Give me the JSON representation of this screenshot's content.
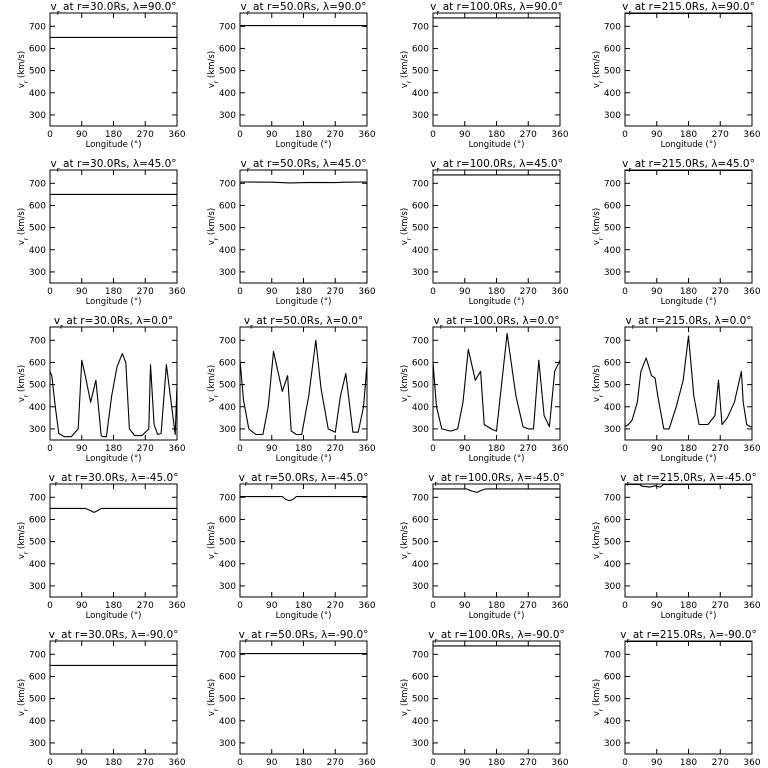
{
  "chart_data": {
    "type": "line",
    "layout": {
      "rows": 5,
      "cols": 4
    },
    "xlabel": "Longitude (°)",
    "ylabel": "v_r (km/s)",
    "xlim": [
      0,
      360
    ],
    "ylim": [
      250,
      760
    ],
    "xticks": [
      0,
      90,
      180,
      270,
      360
    ],
    "yticks": [
      300,
      400,
      500,
      600,
      700
    ],
    "grid": false,
    "line_color": "#000000",
    "panels": [
      {
        "title": "v_r at r=30.0Rs, λ=90.0°",
        "x": [
          0,
          360
        ],
        "y": [
          650,
          650
        ]
      },
      {
        "title": "v_r at r=50.0Rs, λ=90.0°",
        "x": [
          0,
          360
        ],
        "y": [
          703,
          703
        ]
      },
      {
        "title": "v_r at r=100.0Rs, λ=90.0°",
        "x": [
          0,
          360
        ],
        "y": [
          738,
          738
        ]
      },
      {
        "title": "v_r at r=215.0Rs, λ=90.0°",
        "x": [
          0,
          360
        ],
        "y": [
          758,
          758
        ]
      },
      {
        "title": "v_r at r=30.0Rs, λ=45.0°",
        "x": [
          0,
          360
        ],
        "y": [
          650,
          650
        ]
      },
      {
        "title": "v_r at r=50.0Rs, λ=45.0°",
        "x": [
          0,
          90,
          140,
          200,
          270,
          300,
          360
        ],
        "y": [
          706,
          705,
          702,
          704,
          703,
          705,
          706
        ]
      },
      {
        "title": "v_r at r=100.0Rs, λ=45.0°",
        "x": [
          0,
          360
        ],
        "y": [
          738,
          738
        ]
      },
      {
        "title": "v_r at r=215.0Rs, λ=45.0°",
        "x": [
          0,
          360
        ],
        "y": [
          758,
          758
        ]
      },
      {
        "title": "v_r at r=30.0Rs, λ=0.0°",
        "x": [
          0,
          5,
          15,
          25,
          40,
          60,
          80,
          90,
          100,
          115,
          130,
          145,
          150,
          160,
          175,
          190,
          205,
          215,
          225,
          240,
          260,
          280,
          285,
          295,
          305,
          315,
          330,
          345,
          355,
          360
        ],
        "y": [
          560,
          540,
          400,
          280,
          265,
          265,
          300,
          610,
          540,
          420,
          520,
          270,
          265,
          265,
          450,
          580,
          640,
          600,
          300,
          270,
          270,
          300,
          590,
          320,
          275,
          280,
          590,
          400,
          275,
          500
        ]
      },
      {
        "title": "v_r at r=50.0Rs, λ=0.0°",
        "x": [
          0,
          10,
          25,
          45,
          65,
          80,
          95,
          120,
          135,
          145,
          160,
          175,
          195,
          215,
          230,
          250,
          270,
          285,
          300,
          320,
          335,
          350,
          360
        ],
        "y": [
          610,
          430,
          300,
          275,
          275,
          400,
          650,
          470,
          540,
          290,
          275,
          275,
          450,
          700,
          480,
          300,
          285,
          450,
          550,
          285,
          285,
          400,
          590
        ]
      },
      {
        "title": "v_r at r=100.0Rs, λ=0.0°",
        "x": [
          0,
          10,
          25,
          50,
          70,
          85,
          100,
          120,
          135,
          145,
          165,
          180,
          210,
          235,
          255,
          270,
          285,
          300,
          315,
          330,
          345,
          360
        ],
        "y": [
          600,
          400,
          300,
          290,
          300,
          420,
          660,
          520,
          560,
          320,
          300,
          290,
          730,
          450,
          310,
          300,
          300,
          610,
          360,
          310,
          560,
          610
        ]
      },
      {
        "title": "v_r at r=215.0Rs, λ=0.0°",
        "x": [
          0,
          10,
          20,
          35,
          45,
          60,
          75,
          85,
          95,
          110,
          125,
          145,
          165,
          180,
          195,
          210,
          235,
          255,
          265,
          275,
          290,
          310,
          330,
          335,
          345,
          355,
          360
        ],
        "y": [
          310,
          320,
          340,
          420,
          560,
          620,
          540,
          530,
          430,
          300,
          300,
          400,
          520,
          720,
          450,
          320,
          320,
          360,
          520,
          320,
          350,
          420,
          560,
          420,
          320,
          310,
          310
        ]
      },
      {
        "title": "v_r at r=30.0Rs, λ=-45.0°",
        "x": [
          0,
          100,
          115,
          125,
          135,
          145,
          360
        ],
        "y": [
          650,
          650,
          640,
          632,
          640,
          650,
          650
        ]
      },
      {
        "title": "v_r at r=50.0Rs, λ=-45.0°",
        "x": [
          0,
          120,
          130,
          140,
          150,
          160,
          360
        ],
        "y": [
          703,
          703,
          690,
          685,
          690,
          703,
          703
        ]
      },
      {
        "title": "v_r at r=100.0Rs, λ=-45.0°",
        "x": [
          0,
          95,
          110,
          125,
          135,
          150,
          360
        ],
        "y": [
          738,
          738,
          728,
          722,
          730,
          738,
          738
        ]
      },
      {
        "title": "v_r at r=215.0Rs, λ=-45.0°",
        "x": [
          0,
          40,
          50,
          70,
          85,
          100,
          110,
          360
        ],
        "y": [
          758,
          758,
          750,
          746,
          752,
          746,
          758,
          758
        ]
      },
      {
        "title": "v_r at r=30.0Rs, λ=-90.0°",
        "x": [
          0,
          360
        ],
        "y": [
          650,
          650
        ]
      },
      {
        "title": "v_r at r=50.0Rs, λ=-90.0°",
        "x": [
          0,
          360
        ],
        "y": [
          703,
          703
        ]
      },
      {
        "title": "v_r at r=100.0Rs, λ=-90.0°",
        "x": [
          0,
          360
        ],
        "y": [
          738,
          738
        ]
      },
      {
        "title": "v_r at r=215.0Rs, λ=-90.0°",
        "x": [
          0,
          360
        ],
        "y": [
          758,
          758
        ]
      }
    ]
  }
}
